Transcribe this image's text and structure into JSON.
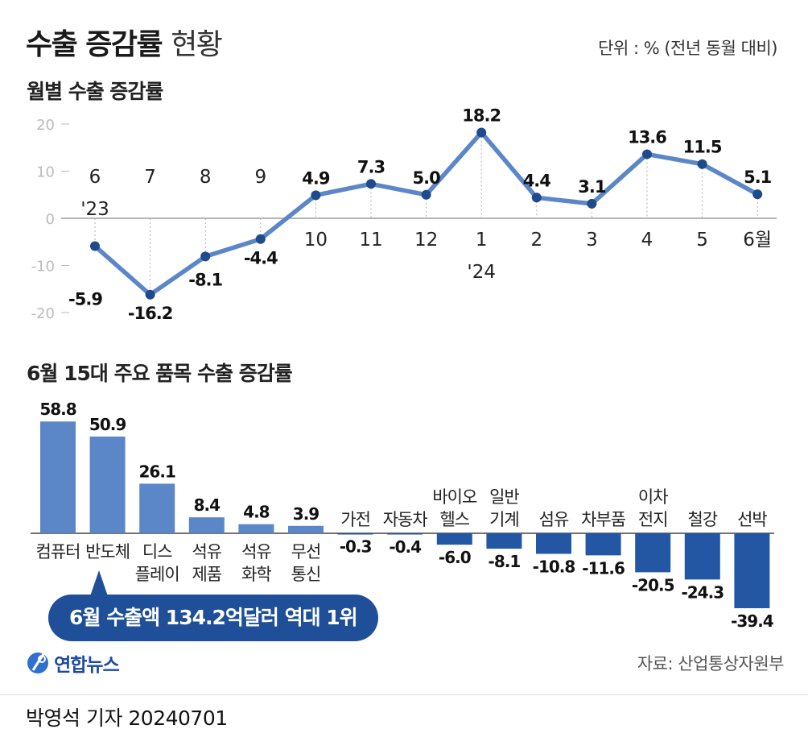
{
  "header": {
    "title_main": "수출 증감률",
    "title_sub": "현황",
    "unit": "단위 : % (전년 동월 대비)"
  },
  "colors": {
    "line": "#5b86c8",
    "marker": "#1f4a8c",
    "bar_positive": "#5b86c8",
    "bar_negative": "#2356a3",
    "badge": "#1e4f98"
  },
  "chart_data": [
    {
      "type": "line",
      "title": "월별 수출 증감률",
      "x": [
        "6 '23",
        "7",
        "8",
        "9",
        "10",
        "11",
        "12",
        "1 '24",
        "2",
        "3",
        "4",
        "5",
        "6월"
      ],
      "x_labels": [
        {
          "lines": [
            "6",
            "'23"
          ]
        },
        {
          "lines": [
            "7"
          ]
        },
        {
          "lines": [
            "8"
          ]
        },
        {
          "lines": [
            "9"
          ]
        },
        {
          "lines": [
            "10"
          ]
        },
        {
          "lines": [
            "11"
          ]
        },
        {
          "lines": [
            "12"
          ]
        },
        {
          "lines": [
            "1",
            "'24"
          ]
        },
        {
          "lines": [
            "2"
          ]
        },
        {
          "lines": [
            "3"
          ]
        },
        {
          "lines": [
            "4"
          ]
        },
        {
          "lines": [
            "5"
          ]
        },
        {
          "lines": [
            "6월"
          ]
        }
      ],
      "values": [
        -5.9,
        -16.2,
        -8.1,
        -4.4,
        4.9,
        7.3,
        5.0,
        18.2,
        4.4,
        3.1,
        13.6,
        11.5,
        5.1
      ],
      "value_labels": [
        "-5.9",
        "-16.2",
        "-8.1",
        "-4.4",
        "4.9",
        "7.3",
        "5.0",
        "18.2",
        "4.4",
        "3.1",
        "13.6",
        "11.5",
        "5.1"
      ],
      "y_ticks": [
        20,
        10,
        0,
        -10,
        -20
      ],
      "ylim": [
        -20,
        20
      ],
      "grid": false,
      "legend": "none"
    },
    {
      "type": "bar",
      "title": "6월 15대 주요 품목 수출 증감률",
      "categories": [
        {
          "lines": [
            "컴퓨터"
          ]
        },
        {
          "lines": [
            "반도체"
          ]
        },
        {
          "lines": [
            "디스",
            "플레이"
          ]
        },
        {
          "lines": [
            "석유",
            "제품"
          ]
        },
        {
          "lines": [
            "석유",
            "화학"
          ]
        },
        {
          "lines": [
            "무선",
            "통신"
          ]
        },
        {
          "lines": [
            "가전"
          ]
        },
        {
          "lines": [
            "자동차"
          ]
        },
        {
          "lines": [
            "바이오",
            "헬스"
          ]
        },
        {
          "lines": [
            "일반",
            "기계"
          ]
        },
        {
          "lines": [
            "섬유"
          ]
        },
        {
          "lines": [
            "차부품"
          ]
        },
        {
          "lines": [
            "이차",
            "전지"
          ]
        },
        {
          "lines": [
            "철강"
          ]
        },
        {
          "lines": [
            "선박"
          ]
        }
      ],
      "values": [
        58.8,
        50.9,
        26.1,
        8.4,
        4.8,
        3.9,
        -0.3,
        -0.4,
        -6.0,
        -8.1,
        -10.8,
        -11.6,
        -20.5,
        -24.3,
        -39.4
      ],
      "value_labels": [
        "58.8",
        "50.9",
        "26.1",
        "8.4",
        "4.8",
        "3.9",
        "-0.3",
        "-0.4",
        "-6.0",
        "-8.1",
        "-10.8",
        "-11.6",
        "-20.5",
        "-24.3",
        "-39.4"
      ],
      "annotation": "6월 수출액 134.2억달러 역대 1위",
      "legend": "none"
    }
  ],
  "footer": {
    "source": "자료: 산업통상자원부",
    "logo_text": "연합뉴스",
    "byline": "박영석 기자  20240701"
  }
}
